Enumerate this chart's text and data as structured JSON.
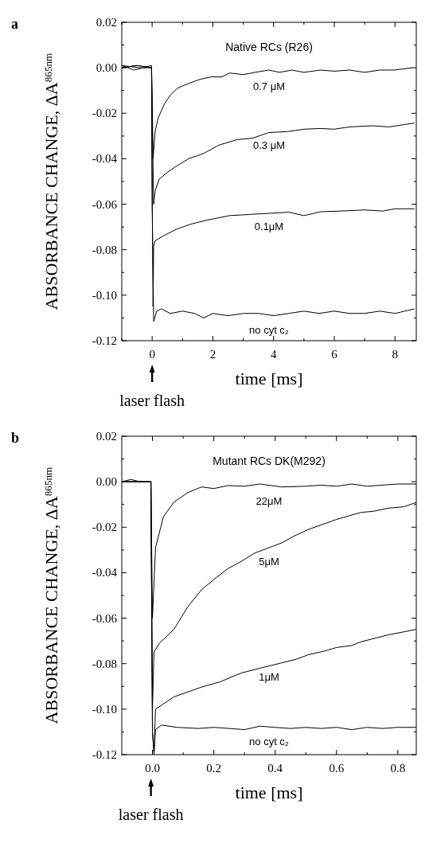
{
  "chart_data": [
    {
      "type": "line",
      "title": "Native RCs (R26)",
      "xlabel": "time [ms]",
      "ylabel": "ABSORBANCE CHANGE, ΔA$^{865nm}$",
      "annotations": [
        "a",
        "laser flash"
      ],
      "xlim": [
        -1,
        8.7
      ],
      "ylim": [
        -0.12,
        0.02
      ],
      "xticks": [
        {
          "value": -1,
          "label": null
        },
        0,
        {
          "value": 1,
          "label": null
        },
        2,
        {
          "value": 3,
          "label": null
        },
        4,
        {
          "value": 5,
          "label": null
        },
        6,
        {
          "value": 7,
          "label": null
        },
        8
      ],
      "yticks": [
        {
          "value": 0.02,
          "label": "0.02"
        },
        {
          "value": 0.01,
          "label": null
        },
        {
          "value": 0,
          "label": "0.00"
        },
        {
          "value": -0.01,
          "label": null
        },
        {
          "value": -0.02,
          "label": "-0.02"
        },
        {
          "value": -0.03,
          "label": null
        },
        {
          "value": -0.04,
          "label": "-0.04"
        },
        {
          "value": -0.05,
          "label": null
        },
        {
          "value": -0.06,
          "label": "-0.06"
        },
        {
          "value": -0.07,
          "label": null
        },
        {
          "value": -0.08,
          "label": "-0.08"
        },
        {
          "value": -0.09,
          "label": null
        },
        {
          "value": -0.1,
          "label": "-0.10"
        },
        {
          "value": -0.11,
          "label": null
        },
        {
          "value": -0.12,
          "label": "-0.12"
        }
      ],
      "grid": false,
      "marker": "none",
      "line_style": "solid",
      "series": [
        {
          "name": "0.7 μM",
          "color": "#000000",
          "x": [
            -1,
            -0.6,
            -0.3,
            -0.02,
            0.0,
            0.03,
            0.1,
            0.2,
            0.4,
            0.6,
            0.83,
            1.0,
            1.26,
            1.6,
            1.95,
            2.3,
            2.55,
            3.0,
            3.4,
            3.84,
            4.2,
            4.6,
            5.0,
            5.55,
            6.0,
            6.5,
            7.0,
            7.5,
            8.0,
            8.56
          ],
          "values": [
            0.001,
            -0.001,
            0.0,
            0.001,
            -0.01,
            -0.04,
            -0.028,
            -0.022,
            -0.016,
            -0.012,
            -0.009,
            -0.008,
            -0.0066,
            -0.005,
            -0.004,
            -0.004,
            -0.0023,
            -0.003,
            -0.002,
            -0.001,
            -0.002,
            -0.001,
            -0.002,
            -0.001,
            -0.0015,
            -0.001,
            -0.002,
            -0.001,
            -0.001,
            0.0
          ]
        },
        {
          "name": "0.3 μM",
          "color": "#000000",
          "x": [
            -1,
            -0.5,
            -0.02,
            0.0,
            0.05,
            0.1,
            0.23,
            0.5,
            0.83,
            1.2,
            1.69,
            2.2,
            2.8,
            3.3,
            3.84,
            4.5,
            5.0,
            5.55,
            6.0,
            6.5,
            7.27,
            7.8,
            8.3,
            8.64
          ],
          "values": [
            0.0,
            0.001,
            0.0,
            -0.02,
            -0.06,
            -0.054,
            -0.049,
            -0.046,
            -0.043,
            -0.04,
            -0.0377,
            -0.034,
            -0.0316,
            -0.031,
            -0.0285,
            -0.028,
            -0.027,
            -0.0267,
            -0.027,
            -0.026,
            -0.0255,
            -0.026,
            -0.025,
            -0.0243
          ]
        },
        {
          "name": "0.1μM",
          "color": "#000000",
          "x": [
            -1,
            -0.4,
            -0.02,
            0.0,
            0.03,
            0.05,
            0.1,
            0.4,
            0.8,
            1.26,
            1.8,
            2.55,
            3.2,
            3.84,
            4.5,
            5.0,
            5.55,
            6.2,
            7.0,
            7.6,
            8.0,
            8.64
          ],
          "values": [
            0.001,
            0.0,
            0.0,
            -0.05,
            -0.105,
            -0.0785,
            -0.076,
            -0.0737,
            -0.071,
            -0.0688,
            -0.067,
            -0.065,
            -0.0645,
            -0.064,
            -0.0635,
            -0.065,
            -0.0633,
            -0.063,
            -0.0625,
            -0.063,
            -0.062,
            -0.062
          ]
        },
        {
          "name": "no cyt c₂",
          "color": "#000000",
          "x": [
            -1,
            -0.5,
            -0.02,
            0.0,
            0.05,
            0.15,
            0.3,
            0.6,
            1.0,
            1.4,
            1.7,
            2.0,
            2.5,
            3.0,
            3.5,
            4.0,
            4.5,
            5.0,
            5.5,
            6.0,
            6.5,
            7.0,
            7.5,
            8.0,
            8.64
          ],
          "values": [
            0.0,
            0.001,
            0.0,
            -0.06,
            -0.1115,
            -0.107,
            -0.106,
            -0.108,
            -0.107,
            -0.108,
            -0.11,
            -0.108,
            -0.109,
            -0.108,
            -0.108,
            -0.109,
            -0.108,
            -0.107,
            -0.108,
            -0.107,
            -0.108,
            -0.108,
            -0.107,
            -0.108,
            -0.106
          ]
        }
      ]
    },
    {
      "type": "line",
      "title": "Mutant RCs DK(M292)",
      "xlabel": "time [ms]",
      "ylabel": "ABSORBANCE CHANGE, ΔA$^{865nm}$",
      "annotations": [
        "b",
        "laser flash"
      ],
      "xlim": [
        -0.1,
        0.86
      ],
      "ylim": [
        -0.12,
        0.02
      ],
      "xticks": [
        {
          "value": 0,
          "label": "0.0"
        },
        {
          "value": 0.1,
          "label": null
        },
        0.2,
        {
          "value": 0.3,
          "label": null
        },
        0.4,
        {
          "value": 0.5,
          "label": null
        },
        0.6,
        {
          "value": 0.7,
          "label": null
        },
        0.8
      ],
      "yticks": [
        {
          "value": 0.02,
          "label": "0.02"
        },
        {
          "value": 0.01,
          "label": null
        },
        {
          "value": 0,
          "label": "0.00"
        },
        {
          "value": -0.01,
          "label": null
        },
        {
          "value": -0.02,
          "label": "-0.02"
        },
        {
          "value": -0.03,
          "label": null
        },
        {
          "value": -0.04,
          "label": "-0.04"
        },
        {
          "value": -0.05,
          "label": null
        },
        {
          "value": -0.06,
          "label": "-0.06"
        },
        {
          "value": -0.07,
          "label": null
        },
        {
          "value": -0.08,
          "label": "-0.08"
        },
        {
          "value": -0.09,
          "label": null
        },
        {
          "value": -0.1,
          "label": "-0.10"
        },
        {
          "value": -0.11,
          "label": null
        },
        {
          "value": -0.12,
          "label": "-0.12"
        }
      ],
      "grid": false,
      "marker": "none",
      "line_style": "solid",
      "series": [
        {
          "name": "22μM",
          "color": "#000000",
          "x": [
            -0.1,
            -0.07,
            -0.04,
            -0.005,
            0.0,
            0.01,
            0.036,
            0.07,
            0.115,
            0.16,
            0.2,
            0.246,
            0.3,
            0.35,
            0.42,
            0.5,
            0.55,
            0.6,
            0.65,
            0.7,
            0.75,
            0.8,
            0.86
          ],
          "values": [
            0.0,
            0.001,
            0.0,
            0.0,
            -0.06,
            -0.029,
            -0.0153,
            -0.009,
            -0.0048,
            -0.0023,
            -0.003,
            -0.0017,
            -0.002,
            -0.001,
            -0.0023,
            -0.002,
            -0.0015,
            -0.002,
            -0.001,
            -0.002,
            -0.0015,
            -0.001,
            -0.001
          ]
        },
        {
          "name": "5μM",
          "color": "#000000",
          "x": [
            -0.1,
            -0.05,
            -0.005,
            0.0,
            0.005,
            0.023,
            0.07,
            0.115,
            0.16,
            0.2,
            0.246,
            0.29,
            0.333,
            0.38,
            0.42,
            0.46,
            0.51,
            0.55,
            0.6,
            0.64,
            0.68,
            0.72,
            0.77,
            0.82,
            0.86
          ],
          "values": [
            0.0,
            0.0,
            0.0,
            -0.1,
            -0.0748,
            -0.071,
            -0.0649,
            -0.055,
            -0.0475,
            -0.043,
            -0.0382,
            -0.035,
            -0.0314,
            -0.029,
            -0.027,
            -0.024,
            -0.0209,
            -0.019,
            -0.0166,
            -0.015,
            -0.0135,
            -0.013,
            -0.0116,
            -0.011,
            -0.0091
          ]
        },
        {
          "name": "1μM",
          "color": "#000000",
          "x": [
            -0.1,
            -0.05,
            -0.005,
            0.0,
            0.005,
            0.01,
            0.07,
            0.16,
            0.22,
            0.29,
            0.35,
            0.42,
            0.47,
            0.51,
            0.56,
            0.6,
            0.65,
            0.68,
            0.72,
            0.77,
            0.82,
            0.86
          ],
          "values": [
            0.0,
            0.0,
            0.0,
            -0.11,
            -0.119,
            -0.1,
            -0.0946,
            -0.0903,
            -0.088,
            -0.0841,
            -0.082,
            -0.0797,
            -0.078,
            -0.076,
            -0.0745,
            -0.0729,
            -0.072,
            -0.0704,
            -0.069,
            -0.0673,
            -0.066,
            -0.0649
          ]
        },
        {
          "name": "no cyt c₂",
          "color": "#000000",
          "x": [
            -0.1,
            -0.05,
            -0.005,
            0.0,
            0.005,
            0.01,
            0.03,
            0.08,
            0.15,
            0.2,
            0.3,
            0.35,
            0.4,
            0.45,
            0.5,
            0.55,
            0.6,
            0.65,
            0.7,
            0.75,
            0.8,
            0.86
          ],
          "values": [
            0.0,
            0.0,
            0.0,
            -0.11,
            -0.12,
            -0.109,
            -0.107,
            -0.108,
            -0.1085,
            -0.108,
            -0.109,
            -0.1075,
            -0.108,
            -0.1085,
            -0.108,
            -0.1085,
            -0.108,
            -0.109,
            -0.108,
            -0.1085,
            -0.108,
            -0.108
          ]
        }
      ]
    }
  ]
}
